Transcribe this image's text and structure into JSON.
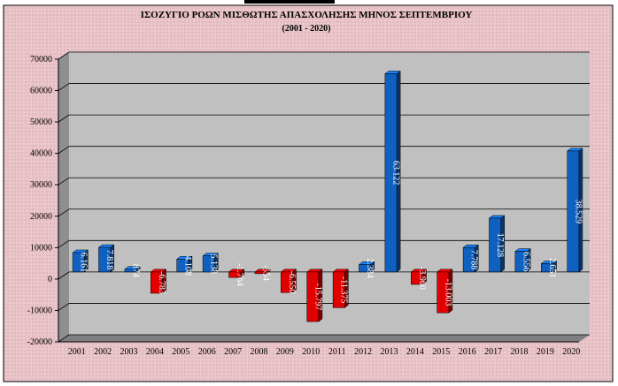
{
  "chart_data": {
    "type": "bar",
    "title": "ΙΣΟΖΥΓΙΟ ΡΟΩΝ ΜΙΣΘΩΤΗΣ ΑΠΑΣΧΟΛΗΣΗΣ ΜΗΝΟΣ  ΣΕΠΤΕΜΒΡΙΟΥ",
    "subtitle": "(2001 - 2020)",
    "xlabel": "",
    "ylabel": "",
    "ylim": [
      -20000,
      70000
    ],
    "yticks": [
      70000,
      60000,
      50000,
      40000,
      30000,
      20000,
      10000,
      0,
      -10000,
      -20000
    ],
    "ytick_labels": [
      "70000",
      "60000",
      "50000",
      "40000",
      "30000",
      "20000",
      "10000",
      "0",
      "-10000",
      "-20000"
    ],
    "categories": [
      "2001",
      "2002",
      "2003",
      "2004",
      "2005",
      "2006",
      "2007",
      "2008",
      "2009",
      "2010",
      "2011",
      "2012",
      "2013",
      "2014",
      "2015",
      "2016",
      "2017",
      "2018",
      "2019",
      "2020"
    ],
    "values": [
      6161,
      7818,
      874,
      -6783,
      4108,
      5138,
      -1764,
      -554,
      -6550,
      -15797,
      -11375,
      2384,
      63122,
      -3960,
      -13003,
      7788,
      17128,
      6556,
      2651,
      38529
    ],
    "data_labels": [
      "6.161",
      "7.818",
      "874",
      "-6.783",
      "4.108",
      "5.138",
      "-1.764",
      "-554",
      "-6.550",
      "-15.797",
      "-11.375",
      "2.384",
      "63.122",
      "-3.960",
      "-13.003",
      "7.788",
      "17.128",
      "6.556",
      "2.651",
      "38.529"
    ],
    "grid": true,
    "legend": "none",
    "colors": {
      "positive": "#1060C0",
      "negative": "#E00000",
      "outer_background": "#E8C0C4",
      "plot_background": "#C0C0C0"
    }
  }
}
